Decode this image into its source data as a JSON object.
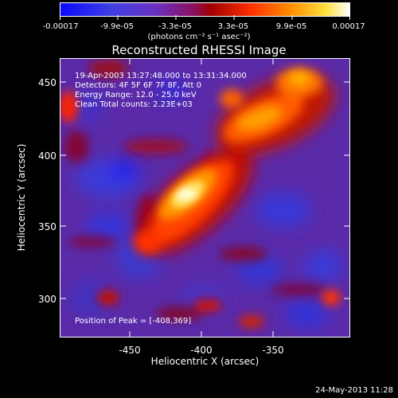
{
  "colorbar": {
    "tick_labels": [
      "-0.00017",
      "-9.9e-05",
      "-3.3e-05",
      "3.3e-05",
      "9.9e-05",
      "0.00017"
    ],
    "units_label": "(photons cm⁻² s⁻¹ asec⁻²)",
    "colors": [
      "#1a1aff",
      "#6a2fc0",
      "#b01010",
      "#ff4000",
      "#ff9a00",
      "#ffffff"
    ]
  },
  "title": "Reconstructed RHESSI Image",
  "annotations": {
    "line1": "19-Apr-2003 13:27:48.000 to 13:31:34.000",
    "line2": "Detectors: 4F 5F 6F 7F 8F, Att 0",
    "line3": "Energy Range: 12.0 - 25.0 keV",
    "line4": "Clean    Total counts: 2.23E+03",
    "peak": "Position of Peak = [-408,369]"
  },
  "axes": {
    "xlabel": "Heliocentric X (arcsec)",
    "ylabel": "Heliocentric Y (arcsec)",
    "xticks": [
      "-450",
      "-400",
      "-350"
    ],
    "yticks": [
      "450",
      "400",
      "350",
      "300"
    ]
  },
  "footer": "24-May-2013 11:28"
}
